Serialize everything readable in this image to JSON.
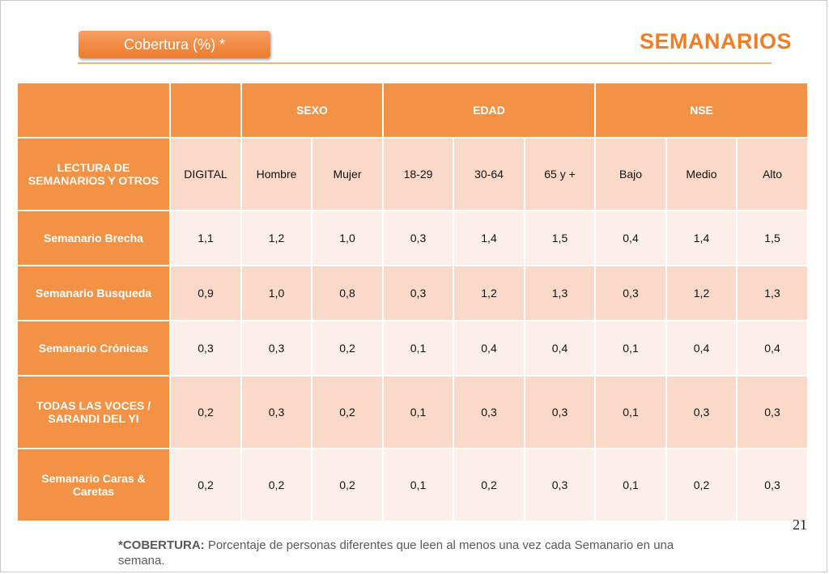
{
  "header": {
    "tag_label": "Cobertura (%) *",
    "title": "SEMANARIOS"
  },
  "table": {
    "group_headers": [
      "",
      "",
      "SEXO",
      "EDAD",
      "NSE"
    ],
    "row_header_label": "LECTURA DE SEMANARIOS Y OTROS",
    "columns": [
      "DIGITAL",
      "Hombre",
      "Mujer",
      "18-29",
      "30-64",
      "65 y +",
      "Bajo",
      "Medio",
      "Alto"
    ],
    "rows": [
      {
        "label": "Semanario Brecha",
        "values": [
          "1,1",
          "1,2",
          "1,0",
          "0,3",
          "1,4",
          "1,5",
          "0,4",
          "1,4",
          "1,5"
        ]
      },
      {
        "label": "Semanario Busqueda",
        "values": [
          "0,9",
          "1,0",
          "0,8",
          "0,3",
          "1,2",
          "1,3",
          "0,3",
          "1,2",
          "1,3"
        ]
      },
      {
        "label": "Semanario Crónicas",
        "values": [
          "0,3",
          "0,3",
          "0,2",
          "0,1",
          "0,4",
          "0,4",
          "0,1",
          "0,4",
          "0,4"
        ]
      },
      {
        "label": "TODAS LAS VOCES / SARANDI DEL YI",
        "values": [
          "0,2",
          "0,3",
          "0,2",
          "0,1",
          "0,3",
          "0,3",
          "0,1",
          "0,3",
          "0,3"
        ]
      },
      {
        "label": "Semanario Caras & Caretas",
        "values": [
          "0,2",
          "0,2",
          "0,2",
          "0,1",
          "0,2",
          "0,3",
          "0,1",
          "0,2",
          "0,3"
        ]
      }
    ]
  },
  "footer": {
    "page_number": "21",
    "footnote_label": "*COBERTURA:",
    "footnote_text": " Porcentaje de personas diferentes que leen al menos una vez cada Semanario en una semana."
  },
  "colors": {
    "accent": "#f07e26",
    "header_fill": "#f39245",
    "band_dark": "#fbd9c8",
    "band_light": "#fceee8"
  }
}
